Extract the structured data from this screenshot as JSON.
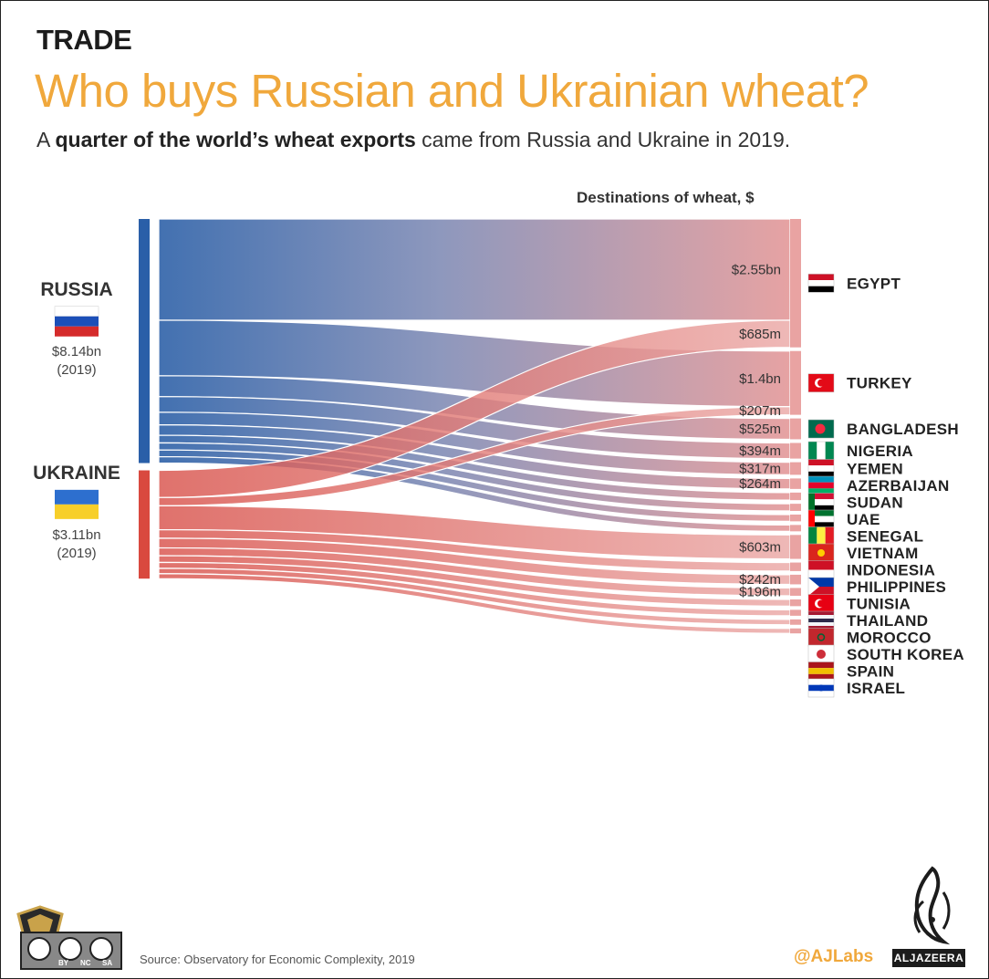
{
  "header": {
    "kicker": "TRADE",
    "title": "Who buys Russian and Ukrainian wheat?",
    "subtitle_pre": "A ",
    "subtitle_bold": "quarter of the world’s wheat exports",
    "subtitle_post": " came from Russia and Ukraine in 2019."
  },
  "dest_header": "Destinations of wheat, $",
  "footer": {
    "source": "Source: Observatory for Economic Complexity, 2019",
    "handle": "@AJLabs",
    "logo_text": "ALJAZEERA",
    "license_labels": [
      "BY",
      "NC",
      "SA"
    ]
  },
  "colors": {
    "russia": "#2a5fa8",
    "ukraine": "#d9493f",
    "destination": "#e9a3a2",
    "title": "#f0a83c"
  },
  "chart_data": {
    "type": "sankey",
    "title": "Destinations of wheat, $",
    "sources": [
      {
        "name": "RUSSIA",
        "value_label": "$8.14bn",
        "year_label": "(2019)",
        "flag": "russia-flag"
      },
      {
        "name": "UKRAINE",
        "value_label": "$3.11bn",
        "year_label": "(2019)",
        "flag": "ukraine-flag"
      }
    ],
    "destinations": [
      {
        "name": "EGYPT",
        "flag": "egypt-flag",
        "labels": [
          "$2.55bn",
          "$685m"
        ]
      },
      {
        "name": "TURKEY",
        "flag": "turkey-flag",
        "labels": [
          "$1.4bn",
          "$207m"
        ]
      },
      {
        "name": "BANGLADESH",
        "flag": "bangladesh-flag",
        "labels": [
          "$525m"
        ]
      },
      {
        "name": "NIGERIA",
        "flag": "nigeria-flag",
        "labels": [
          "$394m"
        ]
      },
      {
        "name": "YEMEN",
        "flag": "yemen-flag",
        "labels": [
          "$317m"
        ]
      },
      {
        "name": "AZERBAIJAN",
        "flag": "azerbaijan-flag",
        "labels": [
          "$264m"
        ]
      },
      {
        "name": "SUDAN",
        "flag": "sudan-flag",
        "labels": []
      },
      {
        "name": "UAE",
        "flag": "uae-flag",
        "labels": []
      },
      {
        "name": "SENEGAL",
        "flag": "senegal-flag",
        "labels": []
      },
      {
        "name": "VIETNAM",
        "flag": "vietnam-flag",
        "labels": []
      },
      {
        "name": "INDONESIA",
        "flag": "indonesia-flag",
        "labels": [
          "$603m"
        ]
      },
      {
        "name": "PHILIPPINES",
        "flag": "philippines-flag",
        "labels": []
      },
      {
        "name": "TUNISIA",
        "flag": "tunisia-flag",
        "labels": [
          "$242m"
        ]
      },
      {
        "name": "THAILAND",
        "flag": "thailand-flag",
        "labels": [
          "$196m"
        ]
      },
      {
        "name": "MOROCCO",
        "flag": "morocco-flag",
        "labels": []
      },
      {
        "name": "SOUTH KOREA",
        "flag": "south-korea-flag",
        "labels": []
      },
      {
        "name": "SPAIN",
        "flag": "spain-flag",
        "labels": []
      },
      {
        "name": "ISRAEL",
        "flag": "israel-flag",
        "labels": []
      }
    ],
    "flows": [
      {
        "source": "RUSSIA",
        "target": "EGYPT",
        "value": 2550,
        "label": "$2.55bn"
      },
      {
        "source": "UKRAINE",
        "target": "EGYPT",
        "value": 685,
        "label": "$685m"
      },
      {
        "source": "RUSSIA",
        "target": "TURKEY",
        "value": 1400,
        "label": "$1.4bn"
      },
      {
        "source": "UKRAINE",
        "target": "TURKEY",
        "value": 207,
        "label": "$207m"
      },
      {
        "source": "RUSSIA",
        "target": "BANGLADESH",
        "value": 525,
        "label": "$525m"
      },
      {
        "source": "RUSSIA",
        "target": "NIGERIA",
        "value": 394,
        "label": "$394m"
      },
      {
        "source": "RUSSIA",
        "target": "YEMEN",
        "value": 317,
        "label": "$317m"
      },
      {
        "source": "RUSSIA",
        "target": "AZERBAIJAN",
        "value": 264,
        "label": "$264m"
      },
      {
        "source": "RUSSIA",
        "target": "SUDAN",
        "value": 190,
        "label": ""
      },
      {
        "source": "RUSSIA",
        "target": "UAE",
        "value": 180,
        "label": ""
      },
      {
        "source": "RUSSIA",
        "target": "SENEGAL",
        "value": 170,
        "label": ""
      },
      {
        "source": "RUSSIA",
        "target": "VIETNAM",
        "value": 160,
        "label": ""
      },
      {
        "source": "UKRAINE",
        "target": "INDONESIA",
        "value": 603,
        "label": "$603m"
      },
      {
        "source": "UKRAINE",
        "target": "PHILIPPINES",
        "value": 215,
        "label": ""
      },
      {
        "source": "UKRAINE",
        "target": "TUNISIA",
        "value": 242,
        "label": "$242m"
      },
      {
        "source": "UKRAINE",
        "target": "THAILAND",
        "value": 196,
        "label": "$196m"
      },
      {
        "source": "UKRAINE",
        "target": "MOROCCO",
        "value": 170,
        "label": ""
      },
      {
        "source": "UKRAINE",
        "target": "SOUTH KOREA",
        "value": 150,
        "label": ""
      },
      {
        "source": "UKRAINE",
        "target": "SPAIN",
        "value": 135,
        "label": ""
      },
      {
        "source": "UKRAINE",
        "target": "ISRAEL",
        "value": 125,
        "label": ""
      }
    ]
  }
}
